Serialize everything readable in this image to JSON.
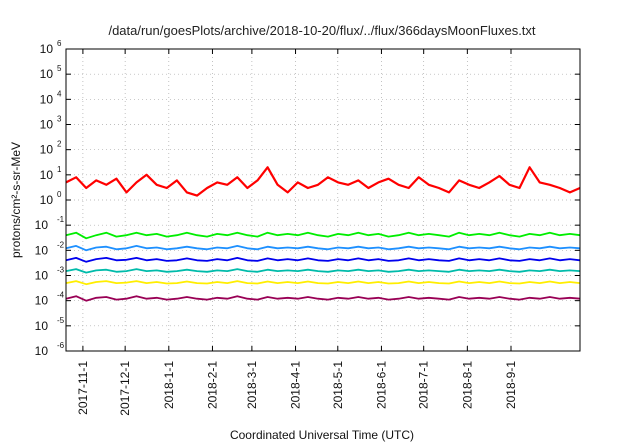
{
  "chart_data": {
    "type": "line",
    "title": "/data/run/goesPlots/archive/2018-10-20/flux/../flux/366daysMoonFluxes.txt",
    "xlabel": "Coordinated Universal Time (UTC)",
    "ylabel": "protons/cm²-s-sr-MeV",
    "yscale": "log",
    "ylim": [
      1e-06,
      1000000.0
    ],
    "y_ticks": [
      {
        "base": "10",
        "exp": "-6"
      },
      {
        "base": "10",
        "exp": "-5"
      },
      {
        "base": "10",
        "exp": "-4"
      },
      {
        "base": "10",
        "exp": "-3"
      },
      {
        "base": "10",
        "exp": "-2"
      },
      {
        "base": "10",
        "exp": "-1"
      },
      {
        "base": "10",
        "exp": "0"
      },
      {
        "base": "10",
        "exp": "1"
      },
      {
        "base": "10",
        "exp": "2"
      },
      {
        "base": "10",
        "exp": "3"
      },
      {
        "base": "10",
        "exp": "4"
      },
      {
        "base": "10",
        "exp": "5"
      },
      {
        "base": "10",
        "exp": "6"
      }
    ],
    "xlim": [
      "2017-10-20",
      "2018-10-20"
    ],
    "x_tick_dates": [
      "2017-11-01",
      "2017-12-01",
      "2018-01-01",
      "2018-02-01",
      "2018-03-01",
      "2018-04-01",
      "2018-05-01",
      "2018-06-01",
      "2018-07-01",
      "2018-08-01",
      "2018-09-01"
    ],
    "x_tick_labels": [
      "2017-11-1",
      "2017-12-1",
      "2018-1-1",
      "2018-2-1",
      "2018-3-1",
      "2018-4-1",
      "2018-5-1",
      "2018-6-1",
      "2018-7-1",
      "2018-8-1",
      "2018-9-1"
    ],
    "grid": true,
    "series": [
      {
        "color": "#ff0000",
        "values": [
          5,
          8,
          3,
          6,
          4,
          7,
          2,
          5,
          10,
          4,
          3,
          6,
          2,
          1.5,
          3,
          5,
          4,
          8,
          3,
          6,
          20,
          4,
          2,
          5,
          3,
          4,
          8,
          5,
          4,
          6,
          3,
          5,
          7,
          4,
          3,
          8,
          4,
          3,
          2,
          6,
          4,
          3,
          5,
          9,
          4,
          3,
          20,
          5,
          4,
          3,
          2,
          3
        ]
      },
      {
        "color": "#00ee00",
        "values": [
          0.04,
          0.05,
          0.03,
          0.04,
          0.05,
          0.035,
          0.04,
          0.05,
          0.04,
          0.045,
          0.035,
          0.04,
          0.05,
          0.04,
          0.035,
          0.045,
          0.04,
          0.05,
          0.04,
          0.035,
          0.05,
          0.04,
          0.045,
          0.04,
          0.05,
          0.04,
          0.035,
          0.045,
          0.04,
          0.05,
          0.04,
          0.045,
          0.035,
          0.04,
          0.05,
          0.04,
          0.045,
          0.04,
          0.035,
          0.05,
          0.04,
          0.045,
          0.04,
          0.05,
          0.04,
          0.035,
          0.045,
          0.04,
          0.05,
          0.04,
          0.045,
          0.04
        ]
      },
      {
        "color": "#1e90ff",
        "values": [
          0.012,
          0.015,
          0.01,
          0.013,
          0.014,
          0.011,
          0.012,
          0.015,
          0.012,
          0.013,
          0.011,
          0.012,
          0.014,
          0.012,
          0.011,
          0.013,
          0.012,
          0.015,
          0.012,
          0.011,
          0.014,
          0.012,
          0.013,
          0.012,
          0.014,
          0.012,
          0.011,
          0.013,
          0.012,
          0.014,
          0.012,
          0.013,
          0.011,
          0.012,
          0.014,
          0.012,
          0.013,
          0.012,
          0.011,
          0.014,
          0.012,
          0.013,
          0.012,
          0.014,
          0.012,
          0.011,
          0.013,
          0.012,
          0.014,
          0.012,
          0.013,
          0.012
        ]
      },
      {
        "color": "#0000ee",
        "values": [
          0.004,
          0.005,
          0.0035,
          0.0045,
          0.005,
          0.004,
          0.0042,
          0.005,
          0.004,
          0.0045,
          0.0038,
          0.004,
          0.0048,
          0.004,
          0.0038,
          0.0045,
          0.004,
          0.005,
          0.004,
          0.0038,
          0.0048,
          0.004,
          0.0045,
          0.004,
          0.0048,
          0.004,
          0.0038,
          0.0045,
          0.004,
          0.0048,
          0.004,
          0.0045,
          0.0038,
          0.004,
          0.0048,
          0.004,
          0.0045,
          0.004,
          0.0038,
          0.0048,
          0.004,
          0.0045,
          0.004,
          0.0048,
          0.004,
          0.0038,
          0.0045,
          0.004,
          0.0048,
          0.004,
          0.0045,
          0.004
        ]
      },
      {
        "color": "#00bbaa",
        "values": [
          0.0015,
          0.0018,
          0.0013,
          0.0016,
          0.0017,
          0.0014,
          0.0015,
          0.0018,
          0.0015,
          0.0016,
          0.0014,
          0.0015,
          0.0017,
          0.0015,
          0.0014,
          0.0016,
          0.0015,
          0.0018,
          0.0015,
          0.0014,
          0.0017,
          0.0015,
          0.0016,
          0.0015,
          0.0017,
          0.0015,
          0.0014,
          0.0016,
          0.0015,
          0.0017,
          0.0015,
          0.0016,
          0.0014,
          0.0015,
          0.0017,
          0.0015,
          0.0016,
          0.0015,
          0.0014,
          0.0017,
          0.0015,
          0.0016,
          0.0015,
          0.0017,
          0.0015,
          0.0014,
          0.0016,
          0.0015,
          0.0017,
          0.0015,
          0.0016,
          0.0015
        ]
      },
      {
        "color": "#ffee00",
        "values": [
          0.0005,
          0.0006,
          0.00045,
          0.00055,
          0.0006,
          0.0005,
          0.00052,
          0.0006,
          0.0005,
          0.00055,
          0.00048,
          0.0005,
          0.00058,
          0.0005,
          0.00048,
          0.00055,
          0.0005,
          0.0006,
          0.0005,
          0.00048,
          0.00058,
          0.0005,
          0.00055,
          0.0005,
          0.00058,
          0.0005,
          0.00048,
          0.00055,
          0.0005,
          0.00058,
          0.0005,
          0.00055,
          0.00048,
          0.0005,
          0.00058,
          0.0005,
          0.00055,
          0.0005,
          0.00048,
          0.00058,
          0.0005,
          0.00055,
          0.0005,
          0.00058,
          0.0005,
          0.00048,
          0.00055,
          0.0005,
          0.00058,
          0.0005,
          0.00055,
          0.0005
        ]
      },
      {
        "color": "#990055",
        "values": [
          0.00012,
          0.00015,
          0.0001,
          0.00013,
          0.00014,
          0.00011,
          0.00012,
          0.00015,
          0.00012,
          0.00013,
          0.00011,
          0.00012,
          0.00014,
          0.00012,
          0.00011,
          0.00013,
          0.00012,
          0.00015,
          0.00012,
          0.00011,
          0.00014,
          0.00012,
          0.00013,
          0.00012,
          0.00014,
          0.00012,
          0.00011,
          0.00013,
          0.00012,
          0.00014,
          0.00012,
          0.00013,
          0.00011,
          0.00012,
          0.00014,
          0.00012,
          0.00013,
          0.00012,
          0.00011,
          0.00014,
          0.00012,
          0.00013,
          0.00012,
          0.00014,
          0.00012,
          0.00011,
          0.00013,
          0.00012,
          0.00014,
          0.00012,
          0.00013,
          0.00012
        ]
      }
    ]
  }
}
